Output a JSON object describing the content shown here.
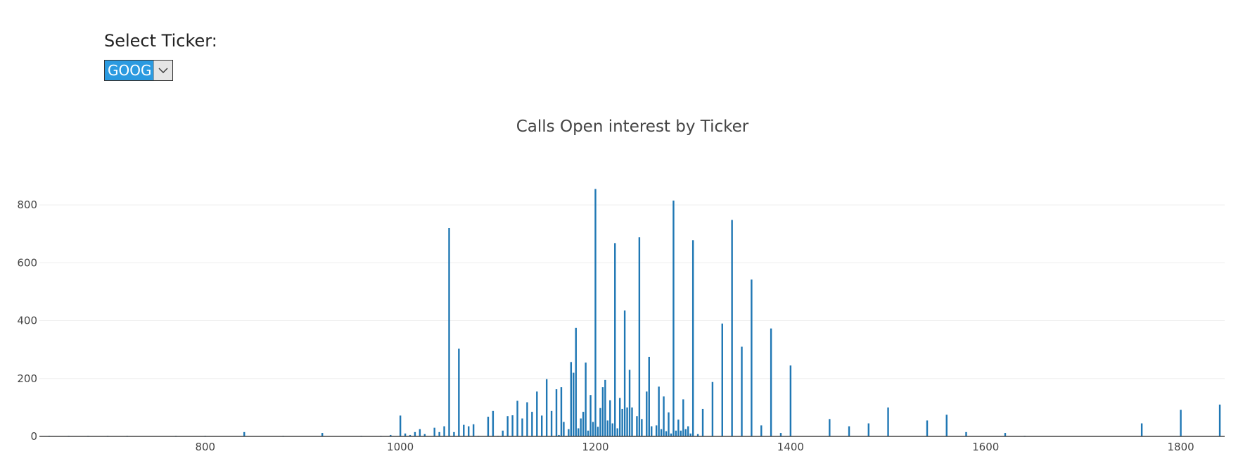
{
  "ticker_selector": {
    "label": "Select Ticker:",
    "selected": "GOOG"
  },
  "colors": {
    "bar": "#1f77b4",
    "grid": "#eeeeee",
    "axis": "#444444",
    "select_highlight": "#2b9ae0"
  },
  "icons": {
    "dropdown": "chevron-down-icon"
  },
  "chart_data": {
    "type": "bar",
    "title": "Calls Open interest by Ticker",
    "xlabel": "",
    "ylabel": "",
    "xlim": [
      630,
      1845
    ],
    "ylim": [
      0,
      900
    ],
    "xticks": [
      800,
      1000,
      1200,
      1400,
      1600,
      1800
    ],
    "yticks": [
      0,
      200,
      400,
      600,
      800
    ],
    "grid": true,
    "x": [
      640,
      660,
      680,
      700,
      720,
      770,
      800,
      840,
      880,
      920,
      960,
      980,
      990,
      1000,
      1005,
      1010,
      1015,
      1020,
      1025,
      1035,
      1040,
      1045,
      1050,
      1055,
      1060,
      1065,
      1070,
      1075,
      1080,
      1090,
      1095,
      1100,
      1105,
      1110,
      1115,
      1120,
      1125,
      1130,
      1135,
      1140,
      1145,
      1150,
      1155,
      1160,
      1162.5,
      1165,
      1167.5,
      1170,
      1172.5,
      1175,
      1177.5,
      1180,
      1182.5,
      1185,
      1187.5,
      1190,
      1192.5,
      1195,
      1197.5,
      1200,
      1202.5,
      1205,
      1207.5,
      1210,
      1212.5,
      1215,
      1217.5,
      1220,
      1222.5,
      1225,
      1227.5,
      1230,
      1232.5,
      1235,
      1237.5,
      1240,
      1242.5,
      1245,
      1247.5,
      1250,
      1252.5,
      1255,
      1257.5,
      1260,
      1262.5,
      1265,
      1267.5,
      1270,
      1272.5,
      1275,
      1277.5,
      1280,
      1282.5,
      1285,
      1287.5,
      1290,
      1292.5,
      1295,
      1297.5,
      1300,
      1305,
      1310,
      1320,
      1330,
      1340,
      1350,
      1360,
      1370,
      1380,
      1390,
      1400,
      1440,
      1460,
      1480,
      1500,
      1540,
      1560,
      1580,
      1620,
      1640,
      1760,
      1800,
      1840
    ],
    "values": [
      1,
      1,
      1,
      1,
      1,
      1,
      1,
      15,
      1,
      12,
      1,
      2,
      5,
      72,
      10,
      5,
      15,
      25,
      8,
      30,
      15,
      35,
      720,
      15,
      303,
      40,
      35,
      42,
      2,
      68,
      88,
      1,
      20,
      70,
      73,
      123,
      62,
      118,
      85,
      155,
      72,
      198,
      88,
      163,
      5,
      170,
      50,
      2,
      25,
      257,
      220,
      375,
      28,
      62,
      85,
      255,
      20,
      143,
      50,
      855,
      33,
      98,
      170,
      195,
      55,
      125,
      45,
      668,
      28,
      133,
      95,
      435,
      100,
      230,
      100,
      2,
      70,
      688,
      60,
      2,
      155,
      275,
      35,
      2,
      38,
      172,
      25,
      138,
      18,
      83,
      10,
      815,
      20,
      58,
      20,
      128,
      25,
      35,
      10,
      678,
      8,
      95,
      188,
      390,
      748,
      310,
      542,
      38,
      373,
      12,
      245,
      60,
      35,
      45,
      100,
      55,
      75,
      15,
      12,
      2,
      45,
      92,
      110
    ]
  }
}
